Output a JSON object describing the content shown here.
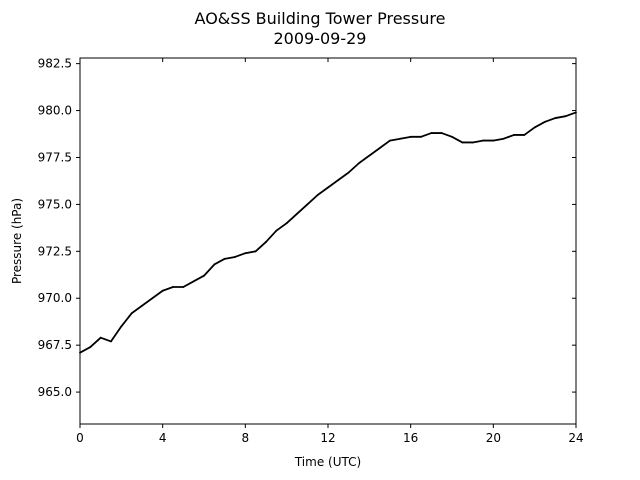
{
  "chart_data": {
    "type": "line",
    "title": "AO&SS Building Tower Pressure",
    "subtitle": "2009-09-29",
    "xlabel": "Time (UTC)",
    "ylabel": "Pressure (hPa)",
    "xlim": [
      0,
      24
    ],
    "ylim": [
      963.3,
      982.8
    ],
    "xticks": [
      0,
      4,
      8,
      12,
      16,
      20,
      24
    ],
    "xtick_labels": [
      "0",
      "4",
      "8",
      "12",
      "16",
      "20",
      "24"
    ],
    "yticks": [
      965.0,
      967.5,
      970.0,
      972.5,
      975.0,
      977.5,
      980.0,
      982.5
    ],
    "ytick_labels": [
      "965.0",
      "967.5",
      "970.0",
      "972.5",
      "975.0",
      "977.5",
      "980.0",
      "982.5"
    ],
    "grid": false,
    "line_color": "#000000",
    "series": [
      {
        "x": [
          0,
          0.5,
          1.0,
          1.5,
          2.0,
          2.5,
          3.0,
          3.5,
          4.0,
          4.5,
          5.0,
          5.5,
          6.0,
          6.5,
          7.0,
          7.5,
          8.0,
          8.5,
          9.0,
          9.5,
          10.0,
          10.5,
          11.0,
          11.5,
          12.0,
          12.5,
          13.0,
          13.5,
          14.0,
          14.5,
          15.0,
          15.5,
          16.0,
          16.5,
          17.0,
          17.5,
          18.0,
          18.5,
          19.0,
          19.5,
          20.0,
          20.5,
          21.0,
          21.5,
          22.0,
          22.5,
          23.0,
          23.5,
          24.0
        ],
        "values": [
          967.1,
          967.4,
          967.9,
          967.7,
          968.5,
          969.2,
          969.6,
          970.0,
          970.4,
          970.6,
          970.6,
          970.9,
          971.2,
          971.8,
          972.1,
          972.2,
          972.4,
          972.5,
          973.0,
          973.6,
          974.0,
          974.5,
          975.0,
          975.5,
          975.9,
          976.3,
          976.7,
          977.2,
          977.6,
          978.0,
          978.4,
          978.5,
          978.6,
          978.6,
          978.8,
          978.8,
          978.6,
          978.3,
          978.3,
          978.4,
          978.4,
          978.5,
          978.7,
          978.7,
          979.1,
          979.4,
          979.6,
          979.7,
          979.9
        ]
      }
    ]
  }
}
